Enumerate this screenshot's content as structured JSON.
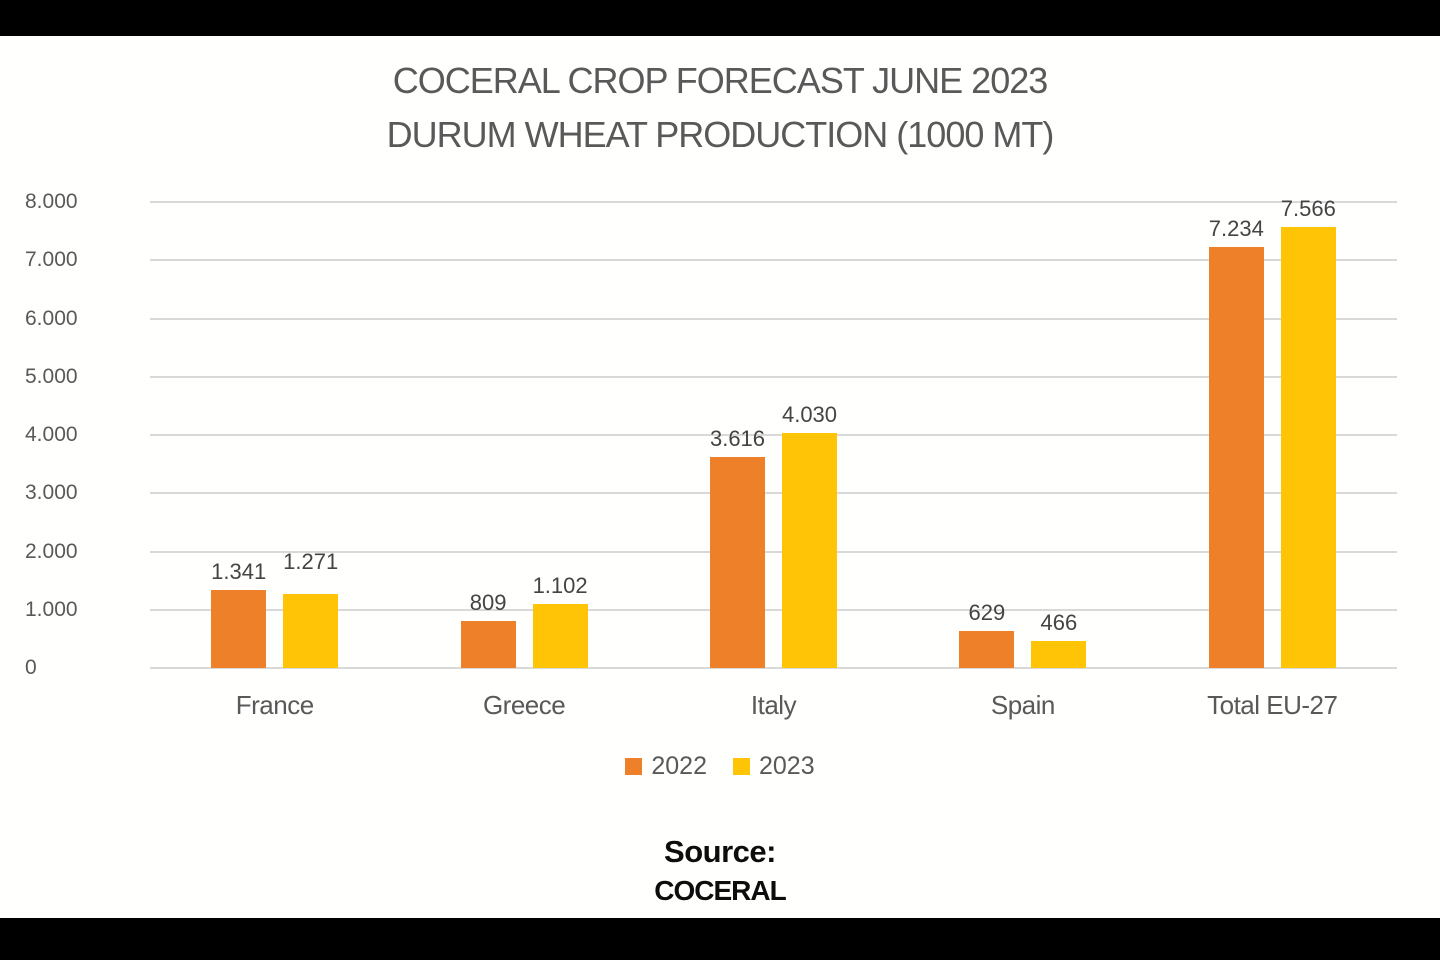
{
  "window": {
    "letterbox_color": "#000000",
    "canvas_color": "#ffffff"
  },
  "title": {
    "line1": "COCERAL CROP FORECAST JUNE 2023",
    "line2": "DURUM WHEAT PRODUCTION (1000 MT)"
  },
  "chart_data": {
    "type": "bar",
    "title": "COCERAL CROP FORECAST JUNE 2023 DURUM WHEAT PRODUCTION (1000 MT)",
    "categories": [
      "France",
      "Greece",
      "Italy",
      "Spain",
      "Total EU-27"
    ],
    "series": [
      {
        "name": "2022",
        "color": "#ED8028",
        "values": [
          1341,
          809,
          3616,
          629,
          7234
        ],
        "labels": [
          "1.341",
          "809",
          "3.616",
          "629",
          "7.234"
        ]
      },
      {
        "name": "2023",
        "color": "#FFC405",
        "values": [
          1271,
          1102,
          4030,
          466,
          7566
        ],
        "labels": [
          "1.271",
          "1.102",
          "4.030",
          "466",
          "7.566"
        ]
      }
    ],
    "xlabel": "",
    "ylabel": "",
    "ylim": [
      0,
      8000
    ],
    "ytick_step": 1000,
    "ytick_labels": [
      "0",
      "1.000",
      "2.000",
      "3.000",
      "4.000",
      "5.000",
      "6.000",
      "7.000",
      "8.000"
    ],
    "grid": true,
    "gridline_color": "#d9d9d9",
    "legend_position": "bottom",
    "data_labels": true
  },
  "source": {
    "line1": "Source:",
    "line2": "COCERAL"
  },
  "colors": {
    "title_text": "#595959",
    "axis_text": "#595959",
    "data_label_text": "#444444"
  }
}
